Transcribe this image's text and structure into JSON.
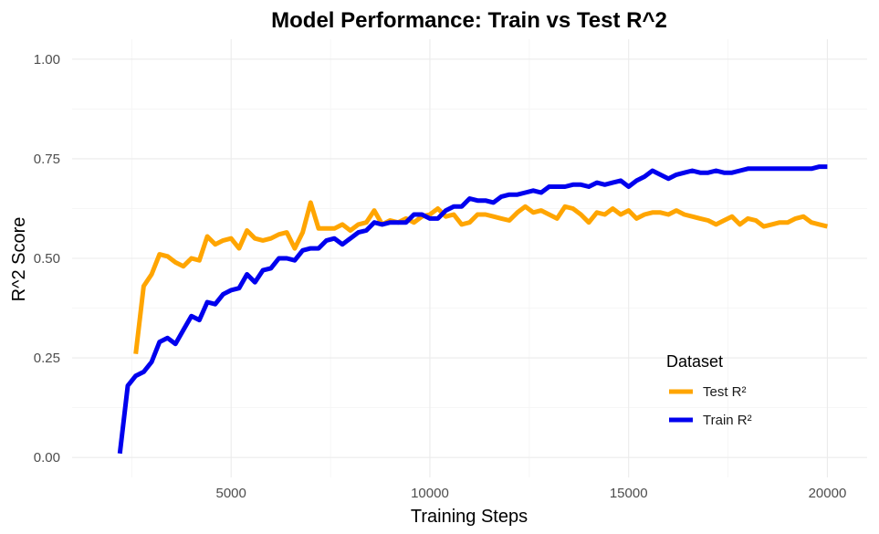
{
  "chart_data": {
    "type": "line",
    "title": "Model Performance: Train vs Test R^2",
    "xlabel": "Training Steps",
    "ylabel": "R^2 Score",
    "xlim": [
      1000,
      21000
    ],
    "ylim": [
      -0.05,
      1.05
    ],
    "x_ticks": [
      5000,
      10000,
      15000,
      20000
    ],
    "x_tick_labels": [
      "5000",
      "10000",
      "15000",
      "20000"
    ],
    "y_ticks": [
      0,
      0.25,
      0.5,
      0.75,
      1.0
    ],
    "y_tick_labels": [
      "0.00",
      "0.25",
      "0.50",
      "0.75",
      "1.00"
    ],
    "grid": true,
    "legend": {
      "title": "Dataset",
      "placement": "bottom-right"
    },
    "series": [
      {
        "name": "Test R²",
        "color": "#FFA500",
        "x": [
          2600,
          2800,
          3000,
          3200,
          3400,
          3600,
          3800,
          4000,
          4200,
          4400,
          4600,
          4800,
          5000,
          5200,
          5400,
          5600,
          5800,
          6000,
          6200,
          6400,
          6600,
          6800,
          7000,
          7200,
          7400,
          7600,
          7800,
          8000,
          8200,
          8400,
          8600,
          8800,
          9000,
          9200,
          9400,
          9600,
          9800,
          10000,
          10200,
          10400,
          10600,
          10800,
          11000,
          11200,
          11400,
          11600,
          11800,
          12000,
          12200,
          12400,
          12600,
          12800,
          13000,
          13200,
          13400,
          13600,
          13800,
          14000,
          14200,
          14400,
          14600,
          14800,
          15000,
          15200,
          15400,
          15600,
          15800,
          16000,
          16200,
          16400,
          16600,
          16800,
          17000,
          17200,
          17400,
          17600,
          17800,
          18000,
          18200,
          18400,
          18600,
          18800,
          19000,
          19200,
          19400,
          19600,
          19800,
          20000
        ],
        "y": [
          0.26,
          0.43,
          0.46,
          0.51,
          0.505,
          0.49,
          0.48,
          0.5,
          0.495,
          0.555,
          0.535,
          0.545,
          0.55,
          0.525,
          0.57,
          0.55,
          0.545,
          0.55,
          0.56,
          0.565,
          0.525,
          0.565,
          0.64,
          0.575,
          0.575,
          0.575,
          0.585,
          0.57,
          0.585,
          0.59,
          0.62,
          0.585,
          0.595,
          0.59,
          0.6,
          0.59,
          0.605,
          0.61,
          0.625,
          0.605,
          0.61,
          0.585,
          0.59,
          0.61,
          0.61,
          0.605,
          0.6,
          0.595,
          0.615,
          0.63,
          0.615,
          0.62,
          0.61,
          0.6,
          0.63,
          0.625,
          0.61,
          0.59,
          0.615,
          0.61,
          0.625,
          0.61,
          0.62,
          0.6,
          0.61,
          0.615,
          0.615,
          0.61,
          0.62,
          0.61,
          0.605,
          0.6,
          0.595,
          0.585,
          0.595,
          0.605,
          0.585,
          0.6,
          0.595,
          0.58,
          0.585,
          0.59,
          0.59,
          0.6,
          0.605,
          0.59,
          0.585,
          0.58
        ]
      },
      {
        "name": "Train R²",
        "color": "#0000EE",
        "x": [
          2200,
          2400,
          2600,
          2800,
          3000,
          3200,
          3400,
          3600,
          3800,
          4000,
          4200,
          4400,
          4600,
          4800,
          5000,
          5200,
          5400,
          5600,
          5800,
          6000,
          6200,
          6400,
          6600,
          6800,
          7000,
          7200,
          7400,
          7600,
          7800,
          8000,
          8200,
          8400,
          8600,
          8800,
          9000,
          9200,
          9400,
          9600,
          9800,
          10000,
          10200,
          10400,
          10600,
          10800,
          11000,
          11200,
          11400,
          11600,
          11800,
          12000,
          12200,
          12400,
          12600,
          12800,
          13000,
          13200,
          13400,
          13600,
          13800,
          14000,
          14200,
          14400,
          14600,
          14800,
          15000,
          15200,
          15400,
          15600,
          15800,
          16000,
          16200,
          16400,
          16600,
          16800,
          17000,
          17200,
          17400,
          17600,
          17800,
          18000,
          18200,
          18400,
          18600,
          18800,
          19000,
          19200,
          19400,
          19600,
          19800,
          20000
        ],
        "y": [
          0.01,
          0.18,
          0.205,
          0.215,
          0.24,
          0.29,
          0.3,
          0.285,
          0.32,
          0.355,
          0.345,
          0.39,
          0.385,
          0.41,
          0.42,
          0.425,
          0.46,
          0.44,
          0.47,
          0.475,
          0.5,
          0.5,
          0.495,
          0.52,
          0.525,
          0.525,
          0.545,
          0.55,
          0.535,
          0.55,
          0.565,
          0.57,
          0.59,
          0.585,
          0.59,
          0.59,
          0.59,
          0.61,
          0.61,
          0.6,
          0.6,
          0.62,
          0.63,
          0.63,
          0.65,
          0.645,
          0.645,
          0.64,
          0.655,
          0.66,
          0.66,
          0.665,
          0.67,
          0.665,
          0.68,
          0.68,
          0.68,
          0.685,
          0.685,
          0.68,
          0.69,
          0.685,
          0.69,
          0.695,
          0.68,
          0.695,
          0.705,
          0.72,
          0.71,
          0.7,
          0.71,
          0.715,
          0.72,
          0.715,
          0.715,
          0.72,
          0.715,
          0.715,
          0.72,
          0.725,
          0.725,
          0.725,
          0.725,
          0.725,
          0.725,
          0.725,
          0.725,
          0.725,
          0.73,
          0.73
        ]
      }
    ]
  }
}
